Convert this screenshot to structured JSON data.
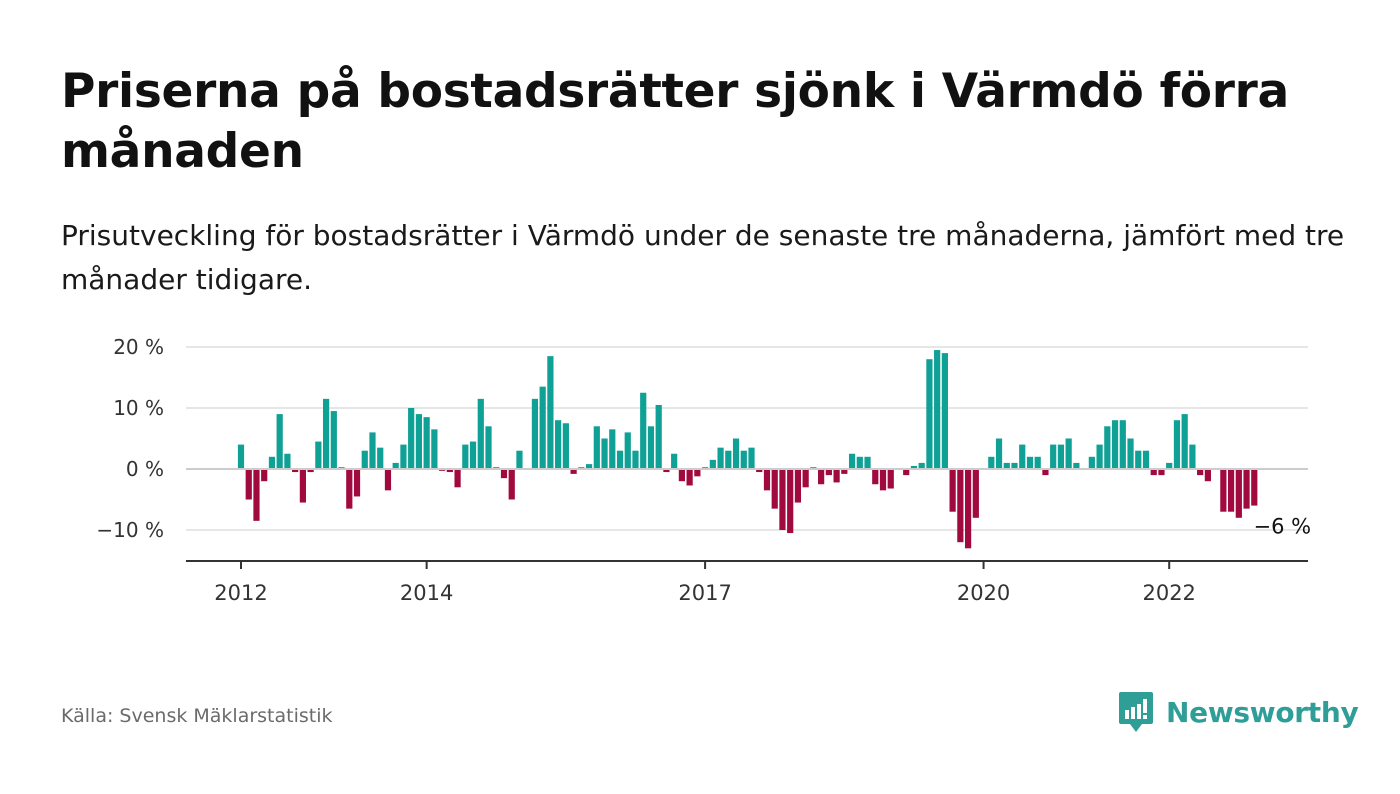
{
  "title": "Priserna på bostadsrätter sjönk i Värmdö förra månaden",
  "subtitle": "Prisutveckling för bostadsrätter i Värmdö under de senaste tre månaderna, jämfört med tre månader tidigare.",
  "source": "Källa: Svensk Mäklarstatistik",
  "brand": "Newsworthy",
  "colors": {
    "positive": "#0fa195",
    "negative": "#a10a3f",
    "brand": "#2f9e96"
  },
  "chart_data": {
    "type": "bar",
    "x_start": "2012-01",
    "frequency": "monthly",
    "ylim": [
      -15,
      20
    ],
    "ytick_values": [
      20,
      10,
      0,
      -10
    ],
    "ytick_labels": [
      "20 %",
      "10 %",
      "0 %",
      "−10 %"
    ],
    "xtick_labels": [
      {
        "label": "2012",
        "index": 0
      },
      {
        "label": "2014",
        "index": 24
      },
      {
        "label": "2017",
        "index": 60
      },
      {
        "label": "2020",
        "index": 96
      },
      {
        "label": "2022",
        "index": 120
      }
    ],
    "annotation": "−6 %",
    "grid": true,
    "values": [
      4,
      -5,
      -8.5,
      -2,
      2,
      9,
      2.5,
      -0.5,
      -5.5,
      -0.5,
      4.5,
      11.5,
      9.5,
      0.3,
      -6.5,
      -4.5,
      3,
      6,
      3.5,
      -3.5,
      1,
      4,
      10,
      9,
      8.5,
      6.5,
      -0.3,
      -0.5,
      -3,
      4,
      4.5,
      11.5,
      7,
      0.3,
      -1.5,
      -5,
      3,
      0,
      11.5,
      13.5,
      18.5,
      8,
      7.5,
      -0.8,
      0.3,
      0.8,
      7,
      5,
      6.5,
      3,
      6,
      3,
      12.5,
      7,
      10.5,
      -0.5,
      2.5,
      -2,
      -2.7,
      -1.2,
      0.3,
      1.5,
      3.5,
      3,
      5,
      3,
      3.5,
      -0.5,
      -3.5,
      -6.5,
      -10,
      -10.5,
      -5.5,
      -3,
      0.3,
      -2.5,
      -1,
      -2.2,
      -0.8,
      2.5,
      2,
      2,
      -2.5,
      -3.5,
      -3.2,
      0,
      -1,
      0.5,
      1,
      18,
      19.5,
      19,
      -7,
      -12,
      -13,
      -8,
      0,
      2,
      5,
      1,
      1,
      4,
      2,
      2,
      -1,
      4,
      4,
      5,
      1,
      0,
      2,
      4,
      7,
      8,
      8,
      5,
      3,
      3,
      -1,
      -1,
      1,
      8,
      9,
      4,
      -1,
      -2,
      0,
      -7,
      -7,
      -8,
      -6.5,
      -6
    ]
  }
}
